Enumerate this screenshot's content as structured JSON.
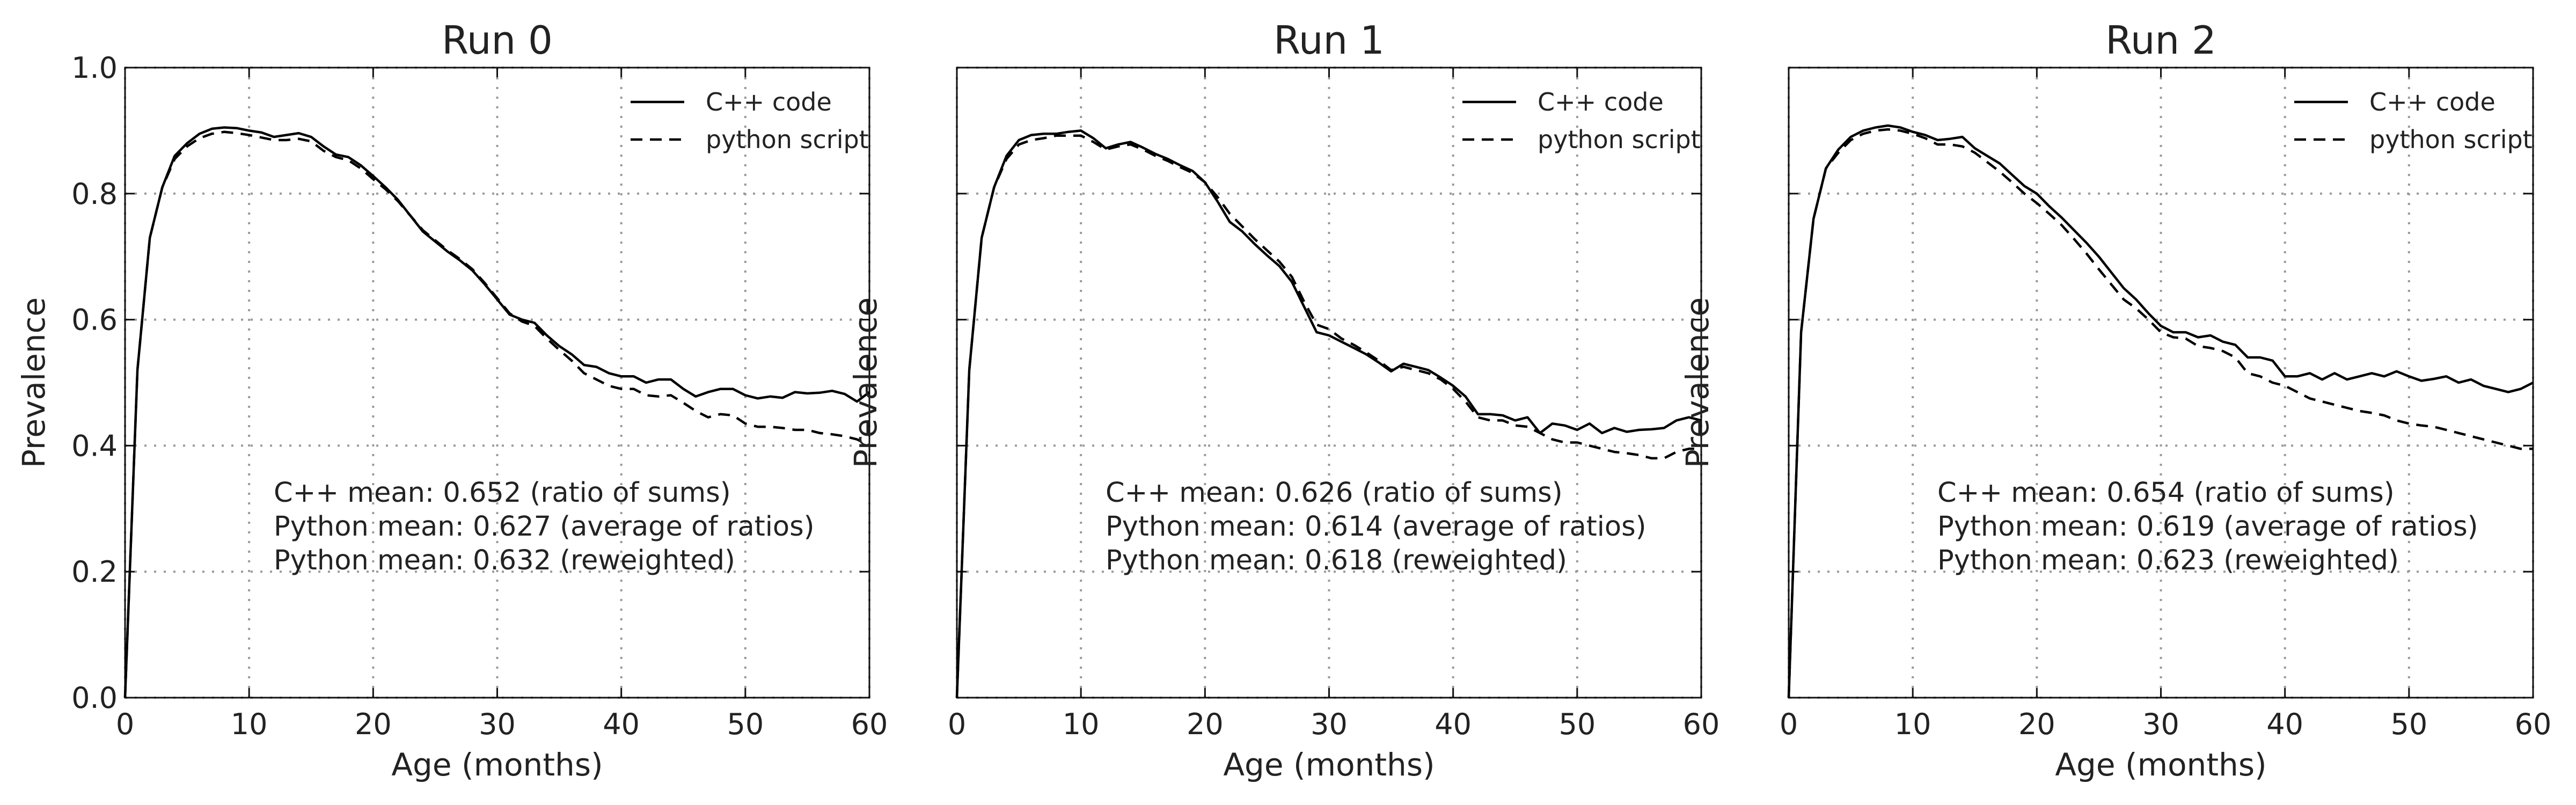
{
  "chart_data": [
    {
      "type": "line",
      "title": "Run 0",
      "xlabel": "Age (months)",
      "ylabel": "Prevalence",
      "xlim": [
        0,
        60
      ],
      "ylim": [
        0.0,
        1.0
      ],
      "xticks": [
        "0",
        "10",
        "20",
        "30",
        "40",
        "50",
        "60"
      ],
      "yticks": [
        "0.0",
        "0.2",
        "0.4",
        "0.6",
        "0.8",
        "1.0"
      ],
      "show_ytick_labels": true,
      "grid": true,
      "legend": "top-right",
      "x": [
        0,
        1,
        2,
        3,
        4,
        5,
        6,
        7,
        8,
        9,
        10,
        11,
        12,
        13,
        14,
        15,
        16,
        17,
        18,
        19,
        20,
        21,
        22,
        23,
        24,
        25,
        26,
        27,
        28,
        29,
        30,
        31,
        32,
        33,
        34,
        35,
        36,
        37,
        38,
        39,
        40,
        41,
        42,
        43,
        44,
        45,
        46,
        47,
        48,
        49,
        50,
        51,
        52,
        53,
        54,
        55,
        56,
        57,
        58,
        59,
        60
      ],
      "series": [
        {
          "name": "C++ code",
          "style": "solid",
          "values": [
            0.0,
            0.52,
            0.73,
            0.81,
            0.86,
            0.88,
            0.895,
            0.903,
            0.905,
            0.904,
            0.9,
            0.897,
            0.89,
            0.893,
            0.896,
            0.89,
            0.875,
            0.862,
            0.858,
            0.845,
            0.828,
            0.81,
            0.79,
            0.765,
            0.74,
            0.724,
            0.708,
            0.694,
            0.678,
            0.656,
            0.632,
            0.608,
            0.6,
            0.595,
            0.575,
            0.558,
            0.545,
            0.528,
            0.525,
            0.515,
            0.51,
            0.51,
            0.5,
            0.505,
            0.505,
            0.49,
            0.478,
            0.485,
            0.49,
            0.49,
            0.48,
            0.475,
            0.478,
            0.476,
            0.485,
            0.483,
            0.484,
            0.487,
            0.482,
            0.47,
            0.485
          ]
        },
        {
          "name": "python script",
          "style": "dashed",
          "values": [
            0.0,
            0.52,
            0.73,
            0.81,
            0.855,
            0.875,
            0.888,
            0.895,
            0.898,
            0.896,
            0.893,
            0.889,
            0.885,
            0.885,
            0.887,
            0.883,
            0.868,
            0.858,
            0.853,
            0.84,
            0.823,
            0.807,
            0.788,
            0.765,
            0.742,
            0.726,
            0.71,
            0.696,
            0.68,
            0.658,
            0.634,
            0.61,
            0.597,
            0.59,
            0.57,
            0.552,
            0.535,
            0.515,
            0.505,
            0.495,
            0.49,
            0.49,
            0.48,
            0.478,
            0.48,
            0.468,
            0.455,
            0.445,
            0.45,
            0.448,
            0.435,
            0.43,
            0.43,
            0.428,
            0.425,
            0.425,
            0.42,
            0.418,
            0.415,
            0.41,
            0.4
          ]
        }
      ],
      "annotations": [
        "C++ mean: 0.652 (ratio of sums)",
        "Python mean: 0.627 (average of ratios)",
        "Python mean: 0.632 (reweighted)"
      ]
    },
    {
      "type": "line",
      "title": "Run 1",
      "xlabel": "Age (months)",
      "ylabel": "Prevalence",
      "xlim": [
        0,
        60
      ],
      "ylim": [
        0.0,
        1.0
      ],
      "xticks": [
        "0",
        "10",
        "20",
        "30",
        "40",
        "50",
        "60"
      ],
      "yticks": [
        "0.0",
        "0.2",
        "0.4",
        "0.6",
        "0.8",
        "1.0"
      ],
      "show_ytick_labels": false,
      "grid": true,
      "legend": "top-right",
      "x": [
        0,
        1,
        2,
        3,
        4,
        5,
        6,
        7,
        8,
        9,
        10,
        11,
        12,
        13,
        14,
        15,
        16,
        17,
        18,
        19,
        20,
        21,
        22,
        23,
        24,
        25,
        26,
        27,
        28,
        29,
        30,
        31,
        32,
        33,
        34,
        35,
        36,
        37,
        38,
        39,
        40,
        41,
        42,
        43,
        44,
        45,
        46,
        47,
        48,
        49,
        50,
        51,
        52,
        53,
        54,
        55,
        56,
        57,
        58,
        59,
        60
      ],
      "series": [
        {
          "name": "C++ code",
          "style": "solid",
          "values": [
            0.0,
            0.52,
            0.73,
            0.81,
            0.86,
            0.885,
            0.893,
            0.895,
            0.895,
            0.898,
            0.9,
            0.888,
            0.872,
            0.878,
            0.882,
            0.873,
            0.863,
            0.855,
            0.845,
            0.836,
            0.818,
            0.788,
            0.755,
            0.74,
            0.72,
            0.702,
            0.685,
            0.66,
            0.62,
            0.58,
            0.575,
            0.565,
            0.555,
            0.545,
            0.532,
            0.518,
            0.53,
            0.525,
            0.52,
            0.508,
            0.495,
            0.478,
            0.45,
            0.45,
            0.448,
            0.44,
            0.445,
            0.42,
            0.435,
            0.432,
            0.425,
            0.435,
            0.42,
            0.428,
            0.422,
            0.425,
            0.426,
            0.428,
            0.44,
            0.445,
            0.44
          ]
        },
        {
          "name": "python script",
          "style": "dashed",
          "values": [
            0.0,
            0.52,
            0.73,
            0.81,
            0.855,
            0.878,
            0.885,
            0.888,
            0.892,
            0.892,
            0.892,
            0.882,
            0.87,
            0.875,
            0.878,
            0.87,
            0.86,
            0.852,
            0.842,
            0.833,
            0.818,
            0.795,
            0.768,
            0.748,
            0.728,
            0.71,
            0.692,
            0.668,
            0.628,
            0.592,
            0.585,
            0.57,
            0.56,
            0.548,
            0.535,
            0.52,
            0.525,
            0.52,
            0.515,
            0.505,
            0.49,
            0.47,
            0.445,
            0.44,
            0.44,
            0.432,
            0.43,
            0.42,
            0.41,
            0.405,
            0.405,
            0.4,
            0.395,
            0.39,
            0.388,
            0.385,
            0.38,
            0.38,
            0.39,
            0.395,
            0.395
          ]
        }
      ],
      "annotations": [
        "C++ mean: 0.626 (ratio of sums)",
        "Python mean: 0.614 (average of ratios)",
        "Python mean: 0.618 (reweighted)"
      ]
    },
    {
      "type": "line",
      "title": "Run 2",
      "xlabel": "Age (months)",
      "ylabel": "Prevalence",
      "xlim": [
        0,
        60
      ],
      "ylim": [
        0.0,
        1.0
      ],
      "xticks": [
        "0",
        "10",
        "20",
        "30",
        "40",
        "50",
        "60"
      ],
      "yticks": [
        "0.0",
        "0.2",
        "0.4",
        "0.6",
        "0.8",
        "1.0"
      ],
      "show_ytick_labels": false,
      "grid": true,
      "legend": "top-right",
      "x": [
        0,
        1,
        2,
        3,
        4,
        5,
        6,
        7,
        8,
        9,
        10,
        11,
        12,
        13,
        14,
        15,
        16,
        17,
        18,
        19,
        20,
        21,
        22,
        23,
        24,
        25,
        26,
        27,
        28,
        29,
        30,
        31,
        32,
        33,
        34,
        35,
        36,
        37,
        38,
        39,
        40,
        41,
        42,
        43,
        44,
        45,
        46,
        47,
        48,
        49,
        50,
        51,
        52,
        53,
        54,
        55,
        56,
        57,
        58,
        59,
        60
      ],
      "series": [
        {
          "name": "C++ code",
          "style": "solid",
          "values": [
            0.0,
            0.58,
            0.76,
            0.84,
            0.87,
            0.89,
            0.9,
            0.905,
            0.908,
            0.905,
            0.898,
            0.893,
            0.885,
            0.887,
            0.89,
            0.872,
            0.86,
            0.848,
            0.83,
            0.812,
            0.8,
            0.78,
            0.762,
            0.742,
            0.722,
            0.7,
            0.675,
            0.65,
            0.632,
            0.61,
            0.59,
            0.58,
            0.58,
            0.572,
            0.575,
            0.565,
            0.56,
            0.54,
            0.54,
            0.535,
            0.51,
            0.51,
            0.515,
            0.505,
            0.515,
            0.505,
            0.51,
            0.515,
            0.51,
            0.518,
            0.51,
            0.503,
            0.506,
            0.51,
            0.5,
            0.505,
            0.495,
            0.49,
            0.485,
            0.49,
            0.5
          ]
        },
        {
          "name": "python script",
          "style": "dashed",
          "values": [
            0.0,
            0.58,
            0.76,
            0.84,
            0.865,
            0.885,
            0.895,
            0.9,
            0.902,
            0.9,
            0.895,
            0.888,
            0.878,
            0.878,
            0.875,
            0.865,
            0.85,
            0.835,
            0.818,
            0.8,
            0.785,
            0.768,
            0.75,
            0.728,
            0.705,
            0.68,
            0.656,
            0.632,
            0.618,
            0.6,
            0.58,
            0.572,
            0.57,
            0.558,
            0.555,
            0.55,
            0.54,
            0.515,
            0.51,
            0.5,
            0.495,
            0.485,
            0.475,
            0.47,
            0.465,
            0.46,
            0.455,
            0.452,
            0.448,
            0.44,
            0.435,
            0.432,
            0.43,
            0.425,
            0.42,
            0.415,
            0.41,
            0.405,
            0.4,
            0.395,
            0.395
          ]
        }
      ],
      "annotations": [
        "C++ mean: 0.654 (ratio of sums)",
        "Python mean: 0.619 (average of ratios)",
        "Python mean: 0.623 (reweighted)"
      ]
    }
  ]
}
